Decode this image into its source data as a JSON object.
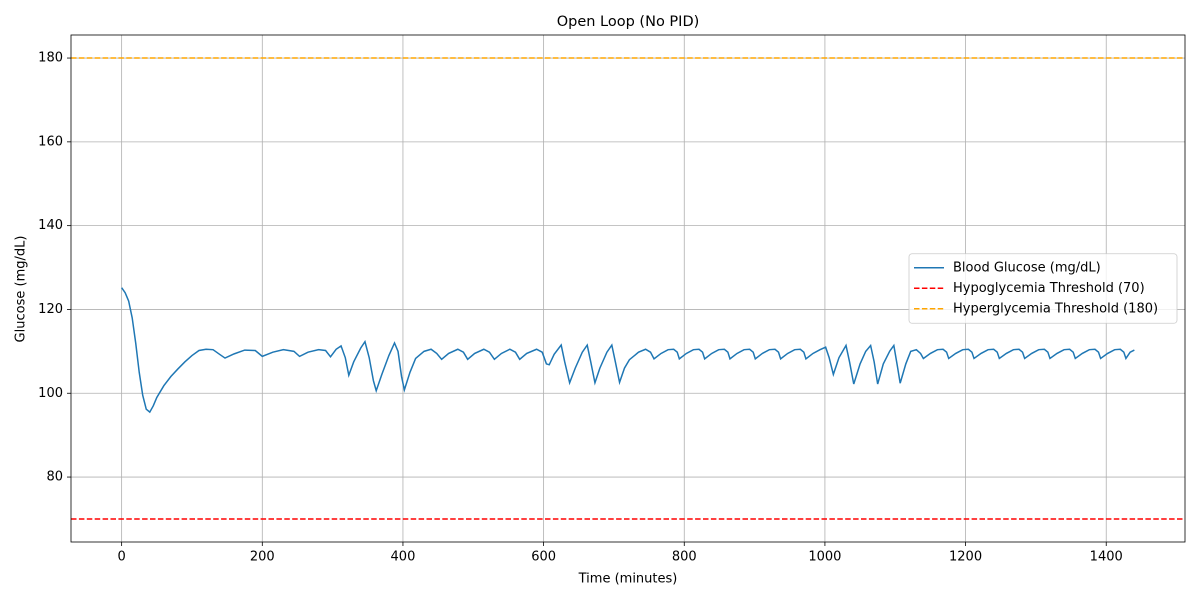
{
  "chart_data": {
    "type": "line",
    "title": "Open Loop (No PID)",
    "xlabel": "Time (minutes)",
    "ylabel": "Glucose (mg/dL)",
    "x": [
      0,
      5,
      10,
      15,
      20,
      25,
      30,
      35,
      40,
      45,
      50,
      60,
      70,
      80,
      90,
      100,
      110,
      120,
      130,
      140,
      147,
      160,
      175,
      190,
      200,
      215,
      230,
      245,
      253,
      265,
      280,
      290,
      297,
      305,
      312,
      318,
      323,
      330,
      340,
      346,
      352,
      358,
      362,
      370,
      380,
      388,
      393,
      398,
      402,
      410,
      418,
      430,
      440,
      448,
      455,
      465,
      478,
      486,
      492,
      502,
      515,
      523,
      530,
      540,
      552,
      560,
      566,
      576,
      590,
      598,
      604,
      608,
      615,
      625,
      630,
      637,
      645,
      655,
      662,
      667,
      673,
      680,
      690,
      697,
      702,
      708,
      715,
      722,
      735,
      745,
      752,
      757,
      767,
      777,
      785,
      790,
      793,
      803,
      813,
      821,
      826,
      829,
      839,
      849,
      857,
      862,
      865,
      875,
      885,
      893,
      898,
      901,
      911,
      921,
      929,
      934,
      937,
      947,
      957,
      965,
      970,
      973,
      983,
      993,
      1001,
      1006,
      1012,
      1020,
      1030,
      1035,
      1041,
      1050,
      1058,
      1065,
      1070,
      1075,
      1083,
      1092,
      1098,
      1103,
      1107,
      1115,
      1122,
      1130,
      1136,
      1140,
      1150,
      1160,
      1168,
      1173,
      1176,
      1186,
      1196,
      1204,
      1209,
      1212,
      1222,
      1232,
      1240,
      1245,
      1248,
      1258,
      1268,
      1276,
      1281,
      1284,
      1294,
      1304,
      1312,
      1317,
      1320,
      1330,
      1340,
      1348,
      1353,
      1356,
      1366,
      1376,
      1384,
      1389,
      1392,
      1402,
      1412,
      1420,
      1425,
      1428,
      1434,
      1440
    ],
    "series": [
      {
        "name": "Blood Glucose (mg/dL)",
        "color": "#1f77b4",
        "values": [
          125.2,
          124,
          122,
          118,
          112,
          105,
          99.5,
          96.2,
          95.5,
          97,
          99,
          101.8,
          104,
          105.8,
          107.5,
          109,
          110.2,
          110.5,
          110.4,
          109.2,
          108.4,
          109.4,
          110.3,
          110.2,
          108.8,
          109.8,
          110.4,
          110,
          108.8,
          109.8,
          110.4,
          110.2,
          108.7,
          110.5,
          111.3,
          108.5,
          104.3,
          107.5,
          110.8,
          112.3,
          108.5,
          103,
          100.6,
          104.5,
          109,
          112,
          110,
          104,
          100.8,
          105,
          108.3,
          110,
          110.5,
          109.5,
          108.1,
          109.5,
          110.5,
          109.8,
          108.1,
          109.5,
          110.5,
          109.8,
          108.1,
          109.5,
          110.5,
          109.8,
          108.1,
          109.5,
          110.5,
          109.8,
          107,
          106.8,
          109.3,
          111.5,
          107.5,
          102.5,
          106,
          109.8,
          111.5,
          107.5,
          102.5,
          106,
          109.8,
          111.5,
          107.5,
          102.6,
          106,
          108,
          109.8,
          110.5,
          109.8,
          108.2,
          109.5,
          110.4,
          110.5,
          109.8,
          108.2,
          109.5,
          110.4,
          110.5,
          109.8,
          108.2,
          109.5,
          110.4,
          110.5,
          109.8,
          108.2,
          109.5,
          110.4,
          110.5,
          109.8,
          108.2,
          109.5,
          110.4,
          110.5,
          109.8,
          108.2,
          109.5,
          110.4,
          110.5,
          109.8,
          108.2,
          109.5,
          110.4,
          111,
          108.5,
          104.5,
          108.5,
          111.4,
          107.5,
          102.2,
          107,
          110,
          111.4,
          107.5,
          102.2,
          107,
          110,
          111.4,
          106.5,
          102.4,
          107,
          110,
          110.4,
          109.5,
          108.3,
          109.5,
          110.4,
          110.5,
          109.8,
          108.3,
          109.5,
          110.4,
          110.5,
          109.8,
          108.3,
          109.5,
          110.4,
          110.5,
          109.8,
          108.3,
          109.5,
          110.4,
          110.5,
          109.8,
          108.3,
          109.5,
          110.4,
          110.5,
          109.8,
          108.3,
          109.5,
          110.4,
          110.5,
          109.8,
          108.3,
          109.5,
          110.4,
          110.5,
          109.8,
          108.3,
          109.5,
          110.4,
          110.5,
          109.8,
          108.3,
          109.8,
          110.3
        ]
      }
    ],
    "hlines": [
      {
        "name": "Hypoglycemia Threshold (70)",
        "color": "#ff0000",
        "value": 70,
        "style": "dashed"
      },
      {
        "name": "Hyperglycemia Threshold (180)",
        "color": "#ffa500",
        "value": 180,
        "style": "dashed"
      }
    ],
    "xlim": [
      -72,
      1512
    ],
    "ylim": [
      64.5,
      185.5
    ],
    "xticks": [
      0,
      200,
      400,
      600,
      800,
      1000,
      1200,
      1400
    ],
    "yticks": [
      80,
      100,
      120,
      140,
      160,
      180
    ],
    "grid": true,
    "legend": "center right"
  }
}
